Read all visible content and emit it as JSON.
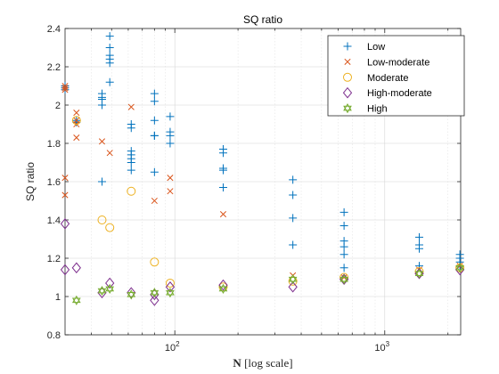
{
  "chart_data": {
    "type": "scatter",
    "title": "SQ ratio",
    "ylabel": "SQ ratio",
    "xlabel_bold": "N",
    "xlabel_rest": " [log scale]",
    "x_scale": "log",
    "xlim": [
      30,
      2300
    ],
    "ylim": [
      0.8,
      2.4
    ],
    "yticks": [
      0.8,
      1,
      1.2,
      1.4,
      1.6,
      1.8,
      2,
      2.2,
      2.4
    ],
    "ytick_labels": [
      "0.8",
      "1",
      "1.2",
      "1.4",
      "1.6",
      "1.8",
      "2",
      "2.2",
      "2.4"
    ],
    "xticks_major": [
      100,
      1000
    ],
    "xtick_labels": [
      {
        "base": "10",
        "exp": "2"
      },
      {
        "base": "10",
        "exp": "3"
      }
    ],
    "grid": true,
    "legend_position": "top-right",
    "series": [
      {
        "name": "Low",
        "marker": "plus",
        "color": "#0072BD",
        "points": [
          [
            30,
            2.1
          ],
          [
            30,
            2.09
          ],
          [
            30,
            2.08
          ],
          [
            34,
            1.92
          ],
          [
            34,
            1.91
          ],
          [
            45,
            2.06
          ],
          [
            45,
            2.04
          ],
          [
            45,
            2.03
          ],
          [
            45,
            2.0
          ],
          [
            45,
            1.6
          ],
          [
            49,
            2.36
          ],
          [
            49,
            2.3
          ],
          [
            49,
            2.26
          ],
          [
            49,
            2.24
          ],
          [
            49,
            2.22
          ],
          [
            49,
            2.12
          ],
          [
            62,
            1.9
          ],
          [
            62,
            1.88
          ],
          [
            62,
            1.76
          ],
          [
            62,
            1.74
          ],
          [
            62,
            1.72
          ],
          [
            62,
            1.7
          ],
          [
            62,
            1.66
          ],
          [
            80,
            2.06
          ],
          [
            80,
            2.02
          ],
          [
            80,
            1.92
          ],
          [
            80,
            1.84
          ],
          [
            80,
            1.84
          ],
          [
            80,
            1.65
          ],
          [
            95,
            1.94
          ],
          [
            95,
            1.86
          ],
          [
            95,
            1.84
          ],
          [
            95,
            1.8
          ],
          [
            170,
            1.77
          ],
          [
            170,
            1.75
          ],
          [
            170,
            1.67
          ],
          [
            170,
            1.66
          ],
          [
            170,
            1.57
          ],
          [
            365,
            1.61
          ],
          [
            365,
            1.53
          ],
          [
            365,
            1.41
          ],
          [
            365,
            1.27
          ],
          [
            640,
            1.44
          ],
          [
            640,
            1.37
          ],
          [
            640,
            1.29
          ],
          [
            640,
            1.26
          ],
          [
            640,
            1.22
          ],
          [
            640,
            1.15
          ],
          [
            1460,
            1.31
          ],
          [
            1460,
            1.27
          ],
          [
            1460,
            1.25
          ],
          [
            1460,
            1.16
          ],
          [
            2280,
            1.22
          ],
          [
            2280,
            1.2
          ],
          [
            2280,
            1.18
          ],
          [
            2280,
            1.16
          ]
        ]
      },
      {
        "name": "Low-moderate",
        "marker": "x",
        "color": "#D95319",
        "points": [
          [
            30,
            2.1
          ],
          [
            30,
            2.09
          ],
          [
            30,
            2.08
          ],
          [
            30,
            1.62
          ],
          [
            30,
            1.53
          ],
          [
            34,
            1.96
          ],
          [
            34,
            1.92
          ],
          [
            34,
            1.9
          ],
          [
            34,
            1.83
          ],
          [
            45,
            1.81
          ],
          [
            49,
            1.75
          ],
          [
            62,
            1.99
          ],
          [
            80,
            1.5
          ],
          [
            95,
            1.62
          ],
          [
            95,
            1.55
          ],
          [
            170,
            1.43
          ],
          [
            365,
            1.11
          ],
          [
            640,
            1.1
          ],
          [
            1460,
            1.14
          ],
          [
            2280,
            1.16
          ]
        ]
      },
      {
        "name": "Moderate",
        "marker": "circle",
        "color": "#EDB120",
        "points": [
          [
            34,
            1.92
          ],
          [
            45,
            1.4
          ],
          [
            49,
            1.36
          ],
          [
            62,
            1.55
          ],
          [
            80,
            1.18
          ],
          [
            95,
            1.07
          ],
          [
            170,
            1.05
          ],
          [
            365,
            1.08
          ],
          [
            640,
            1.1
          ],
          [
            1460,
            1.13
          ],
          [
            2280,
            1.15
          ]
        ]
      },
      {
        "name": "High-moderate",
        "marker": "diamond",
        "color": "#7E2F8E",
        "points": [
          [
            30,
            1.38
          ],
          [
            30,
            1.14
          ],
          [
            34,
            1.15
          ],
          [
            45,
            1.02
          ],
          [
            49,
            1.07
          ],
          [
            62,
            1.02
          ],
          [
            80,
            1.01
          ],
          [
            80,
            0.98
          ],
          [
            95,
            1.05
          ],
          [
            170,
            1.06
          ],
          [
            365,
            1.05
          ],
          [
            640,
            1.09
          ],
          [
            1460,
            1.12
          ],
          [
            2280,
            1.14
          ]
        ]
      },
      {
        "name": "High",
        "marker": "hexagram",
        "color": "#77AC30",
        "points": [
          [
            34,
            0.98
          ],
          [
            45,
            1.03
          ],
          [
            49,
            1.04
          ],
          [
            62,
            1.01
          ],
          [
            80,
            1.02
          ],
          [
            95,
            1.02
          ],
          [
            170,
            1.04
          ],
          [
            365,
            1.09
          ],
          [
            640,
            1.09
          ],
          [
            1460,
            1.12
          ],
          [
            2280,
            1.15
          ]
        ]
      }
    ]
  }
}
